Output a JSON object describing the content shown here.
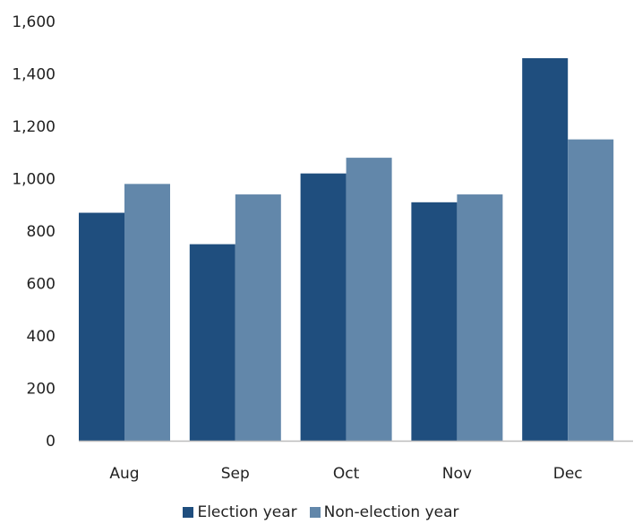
{
  "chart_data": {
    "type": "bar",
    "title": "",
    "xlabel": "",
    "ylabel": "",
    "categories": [
      "Aug",
      "Sep",
      "Oct",
      "Nov",
      "Dec"
    ],
    "series": [
      {
        "name": "Election year",
        "color": "#1f4e7e",
        "values": [
          870,
          750,
          1020,
          910,
          1460
        ]
      },
      {
        "name": "Non-election year",
        "color": "#6287aa",
        "values": [
          980,
          940,
          1080,
          940,
          1150
        ]
      }
    ],
    "ylim": [
      0,
      1600
    ],
    "yticks": [
      0,
      200,
      400,
      600,
      800,
      1000,
      1200,
      1400,
      1600
    ],
    "ytick_labels": [
      "0",
      "200",
      "400",
      "600",
      "800",
      "1,000",
      "1,200",
      "1,400",
      "1,600"
    ],
    "grid": false,
    "legend_position": "bottom-center"
  }
}
